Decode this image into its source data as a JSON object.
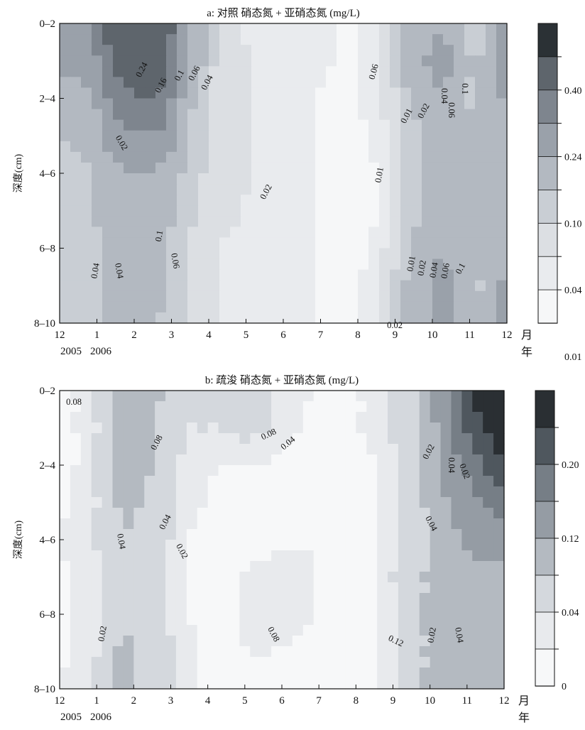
{
  "chart_data": [
    {
      "type": "heatmap",
      "title": "a: 对照 硝态氮 + 亚硝态氮 (mg/L)",
      "ylabel": "深度(cm)",
      "xunit": "月",
      "yearunit": "年",
      "x_ticks": [
        "12",
        "1",
        "2",
        "3",
        "4",
        "5",
        "6",
        "7",
        "8",
        "9",
        "10",
        "11",
        "12"
      ],
      "year_labels": [
        "2005",
        "2006"
      ],
      "y_ticks": [
        "0–2",
        "2–4",
        "4–6",
        "6–8",
        "8–10"
      ],
      "contour_labels": [
        "0.24",
        "0.16",
        "0.1",
        "0.06",
        "0.04",
        "0.02",
        "0.1",
        "0.06",
        "0.04",
        "0.04",
        "0.06",
        "0.02",
        "0.01",
        "0.01",
        "0.02",
        "0.04",
        "0.06",
        "0.1",
        "0.01",
        "0.02",
        "0.04",
        "0.06",
        "0.1",
        "0.02"
      ],
      "colorbar_labels": [
        "0.40",
        "0.24",
        "0.10",
        "0.04",
        "0.01"
      ],
      "levels": [
        0.01,
        0.02,
        0.04,
        0.06,
        0.1,
        0.16,
        0.24,
        0.4
      ],
      "colors": [
        "#f6f7f8",
        "#e9ebee",
        "#dcdfe3",
        "#c9ced4",
        "#b3b9c1",
        "#9aa1aa",
        "#7e858e",
        "#5e656c",
        "#2b3135"
      ],
      "grid": [
        [
          0.12,
          0.16,
          0.38,
          0.4,
          0.1,
          0.03,
          0.015,
          0.012,
          0.015,
          0.008,
          0.02,
          0.08,
          0.1,
          0.04,
          0.12
        ],
        [
          0.11,
          0.13,
          0.3,
          0.34,
          0.09,
          0.03,
          0.02,
          0.012,
          0.012,
          0.008,
          0.02,
          0.08,
          0.12,
          0.05,
          0.12
        ],
        [
          0.07,
          0.09,
          0.22,
          0.26,
          0.07,
          0.03,
          0.02,
          0.012,
          0.01,
          0.007,
          0.015,
          0.06,
          0.1,
          0.05,
          0.11
        ],
        [
          0.06,
          0.07,
          0.15,
          0.16,
          0.06,
          0.03,
          0.02,
          0.012,
          0.01,
          0.007,
          0.012,
          0.05,
          0.09,
          0.06,
          0.1
        ],
        [
          0.05,
          0.06,
          0.1,
          0.1,
          0.05,
          0.03,
          0.02,
          0.012,
          0.01,
          0.006,
          0.01,
          0.05,
          0.09,
          0.07,
          0.1
        ],
        [
          0.045,
          0.06,
          0.08,
          0.08,
          0.045,
          0.025,
          0.018,
          0.012,
          0.01,
          0.006,
          0.01,
          0.05,
          0.09,
          0.07,
          0.1
        ],
        [
          0.04,
          0.05,
          0.07,
          0.07,
          0.04,
          0.02,
          0.015,
          0.012,
          0.01,
          0.006,
          0.012,
          0.06,
          0.1,
          0.06,
          0.1
        ],
        [
          0.04,
          0.05,
          0.07,
          0.07,
          0.04,
          0.02,
          0.015,
          0.012,
          0.01,
          0.006,
          0.015,
          0.07,
          0.12,
          0.05,
          0.11
        ],
        [
          0.04,
          0.05,
          0.07,
          0.06,
          0.04,
          0.02,
          0.015,
          0.012,
          0.01,
          0.006,
          0.015,
          0.07,
          0.13,
          0.05,
          0.12
        ]
      ]
    },
    {
      "type": "heatmap",
      "title": "b: 疏浚 硝态氮 + 亚硝态氮 (mg/L)",
      "ylabel": "深度(cm)",
      "xunit": "月",
      "yearunit": "年",
      "x_ticks": [
        "12",
        "1",
        "2",
        "3",
        "4",
        "5",
        "6",
        "7",
        "8",
        "9",
        "10",
        "11",
        "12"
      ],
      "year_labels": [
        "2005",
        "2006"
      ],
      "y_ticks": [
        "0–2",
        "2–4",
        "4–6",
        "6–8",
        "8–10"
      ],
      "contour_labels": [
        "0.08",
        "0.04",
        "0.02",
        "0.04",
        "0.02",
        "0.08",
        "0.04",
        "0.02",
        "0.04",
        "0.02",
        "0.04",
        "0.08",
        "0.12",
        "0.02",
        "0.04",
        "0.08"
      ],
      "colorbar_labels": [
        "0.20",
        "0.12",
        "0.04",
        "0"
      ],
      "levels": [
        0.02,
        0.04,
        0.08,
        0.12,
        0.16,
        0.2,
        0.24
      ],
      "colors": [
        "#f7f8f9",
        "#e8eaed",
        "#d4d8dd",
        "#b4bac1",
        "#959ca4",
        "#767e86",
        "#4f575e",
        "#2a2f33"
      ],
      "grid": [
        [
          0.01,
          0.03,
          0.1,
          0.09,
          0.05,
          0.05,
          0.06,
          0.03,
          0.02,
          0.01,
          0.03,
          0.06,
          0.14,
          0.24,
          0.3
        ],
        [
          0.01,
          0.03,
          0.09,
          0.08,
          0.04,
          0.04,
          0.05,
          0.03,
          0.015,
          0.01,
          0.03,
          0.06,
          0.13,
          0.22,
          0.28
        ],
        [
          0.01,
          0.03,
          0.1,
          0.08,
          0.03,
          0.02,
          0.02,
          0.015,
          0.01,
          0.01,
          0.02,
          0.05,
          0.12,
          0.18,
          0.24
        ],
        [
          0.015,
          0.03,
          0.09,
          0.07,
          0.025,
          0.015,
          0.01,
          0.012,
          0.01,
          0.008,
          0.02,
          0.05,
          0.11,
          0.15,
          0.18
        ],
        [
          0.02,
          0.035,
          0.08,
          0.06,
          0.02,
          0.01,
          0.01,
          0.015,
          0.02,
          0.01,
          0.02,
          0.05,
          0.1,
          0.13,
          0.13
        ],
        [
          0.015,
          0.03,
          0.07,
          0.05,
          0.02,
          0.01,
          0.025,
          0.03,
          0.02,
          0.01,
          0.02,
          0.06,
          0.1,
          0.11,
          0.11
        ],
        [
          0.015,
          0.03,
          0.08,
          0.05,
          0.02,
          0.01,
          0.03,
          0.03,
          0.02,
          0.01,
          0.015,
          0.06,
          0.1,
          0.1,
          0.1
        ],
        [
          0.015,
          0.03,
          0.09,
          0.06,
          0.025,
          0.01,
          0.02,
          0.02,
          0.015,
          0.01,
          0.015,
          0.06,
          0.1,
          0.1,
          0.1
        ],
        [
          0.02,
          0.035,
          0.1,
          0.06,
          0.03,
          0.01,
          0.012,
          0.01,
          0.01,
          0.01,
          0.02,
          0.06,
          0.1,
          0.09,
          0.09
        ]
      ]
    }
  ]
}
